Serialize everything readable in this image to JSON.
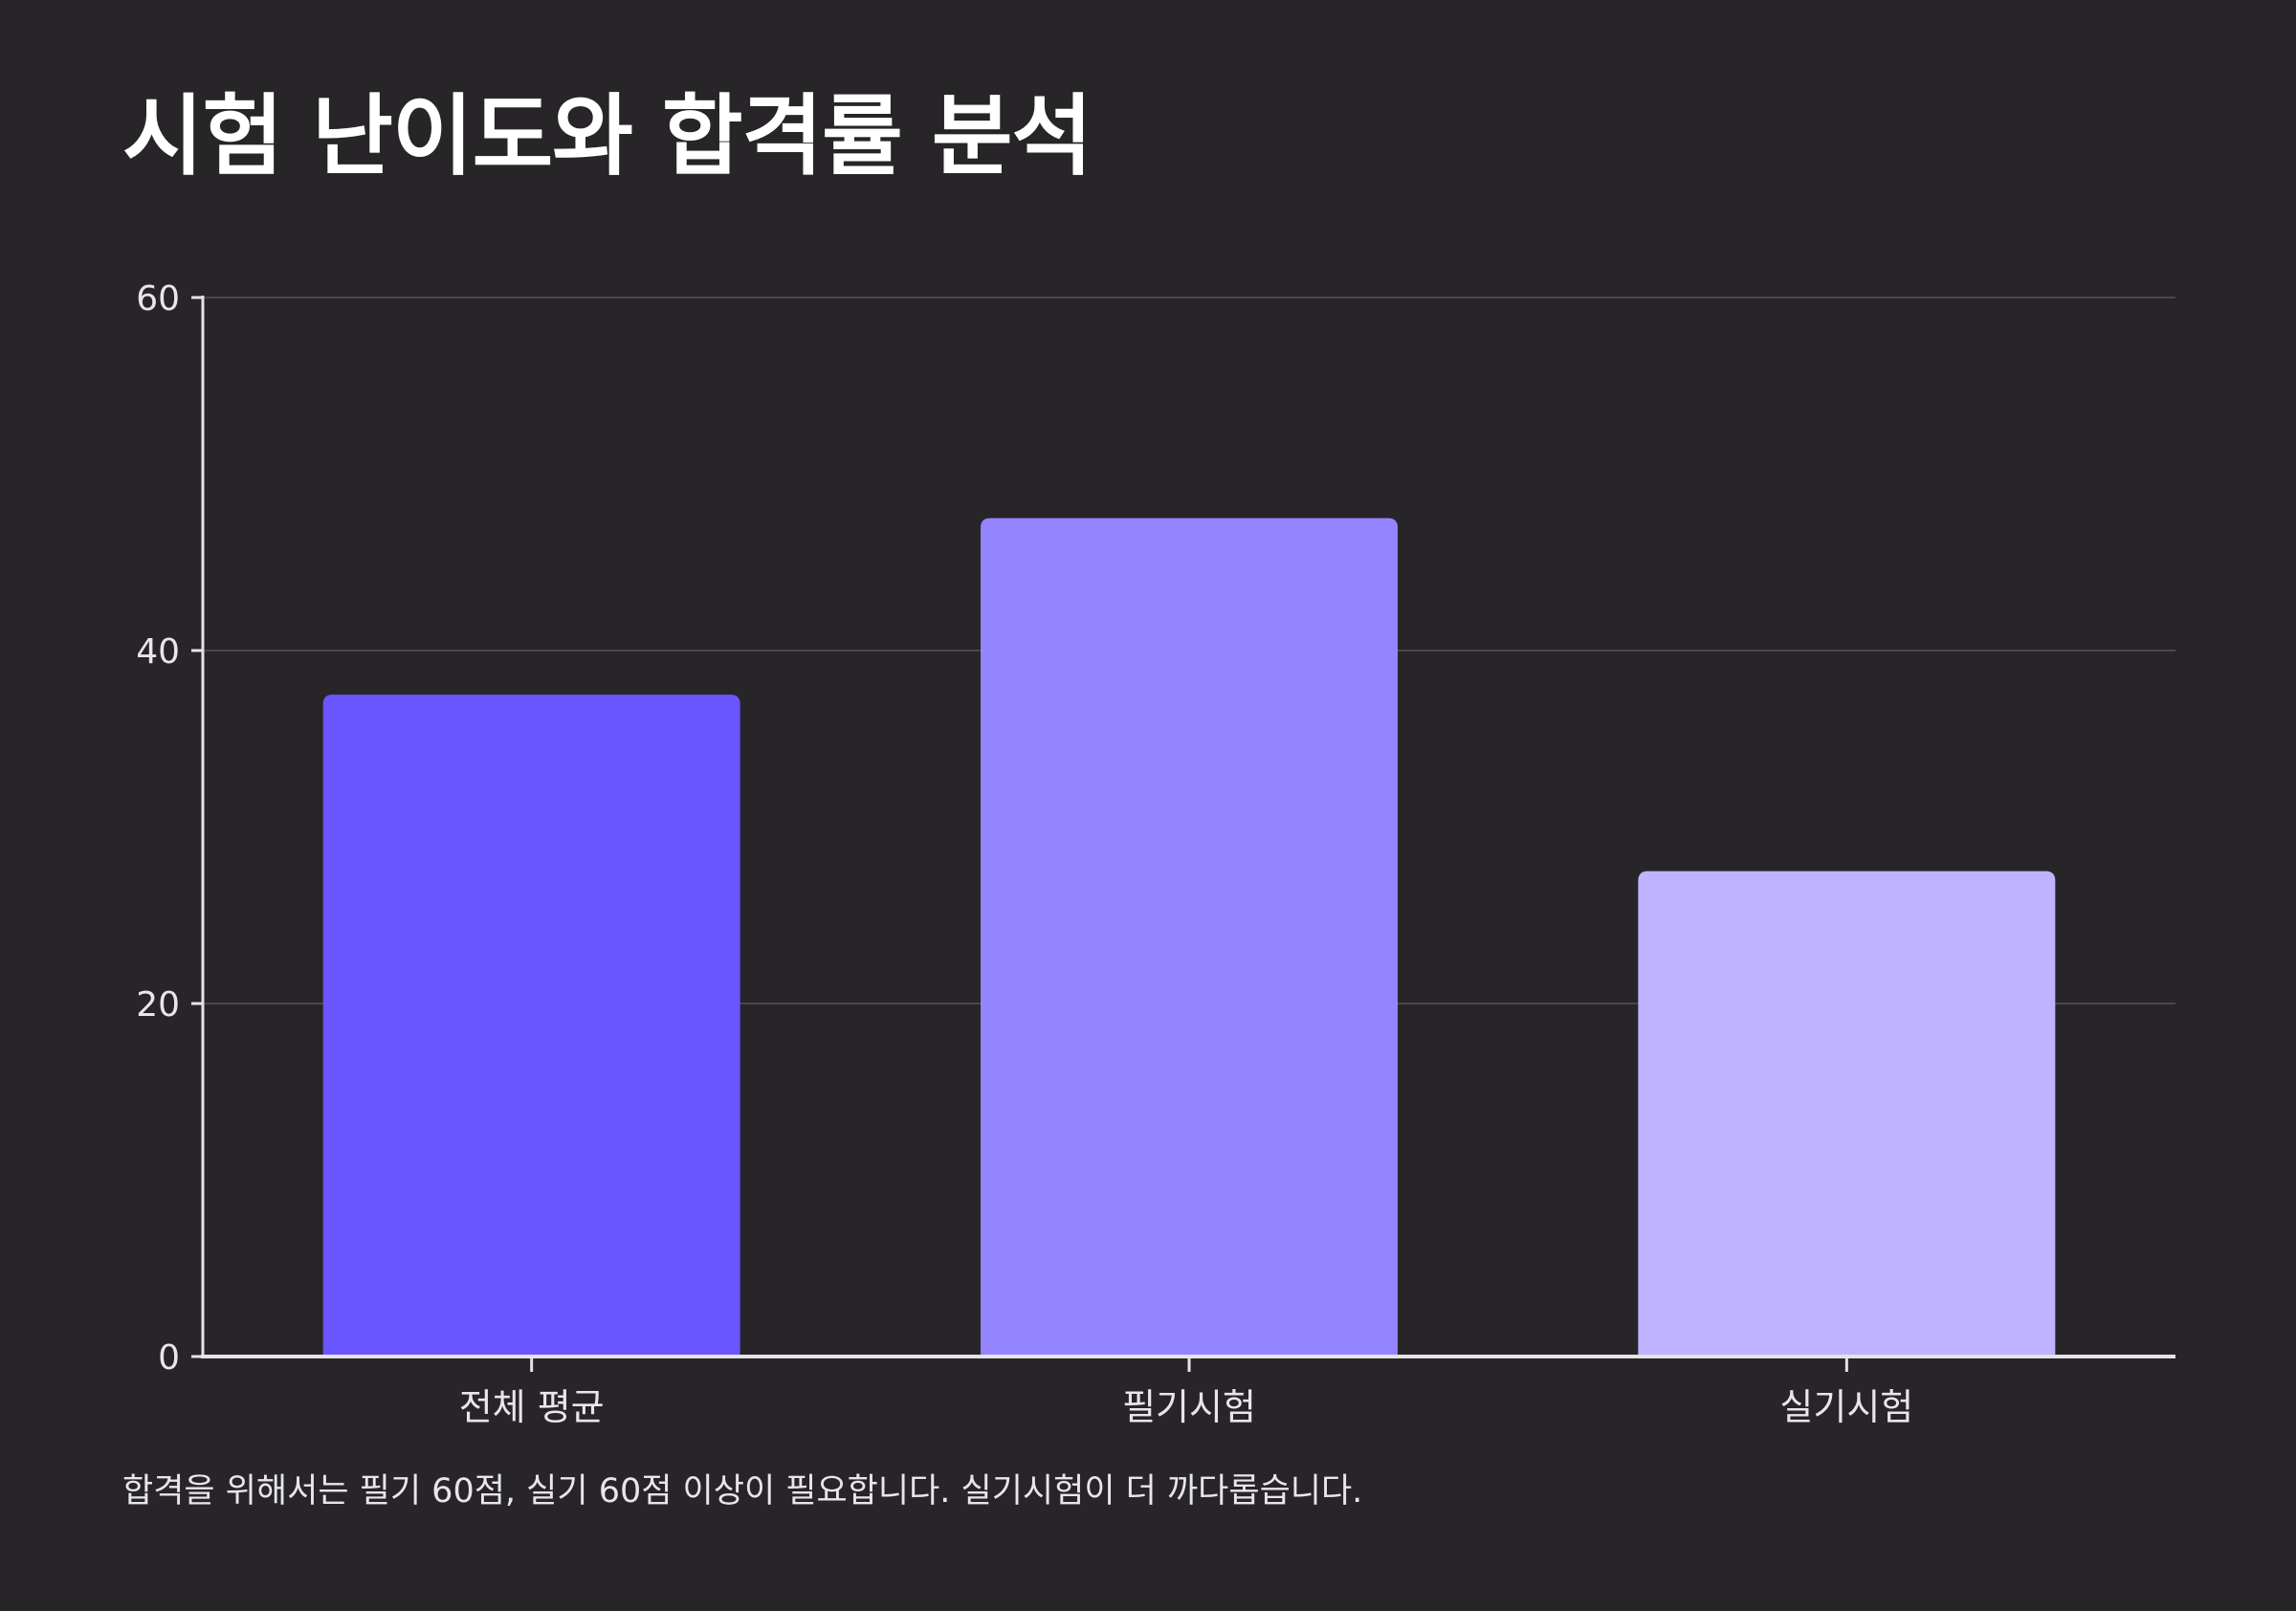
{
  "title": "시험 난이도와 합격률 분석",
  "caption": "합격을 위해서는 필기 60점, 실기 60점 이상이 필요합니다. 실기시험이 더 까다롭습니다.",
  "colors": {
    "background": "#272527",
    "axis": "#e6e2e6",
    "grid": "#4a474b",
    "tick_text": "#e8e6ea",
    "bar_colors": [
      "#6a56ff",
      "#9484ff",
      "#bfb3ff"
    ]
  },
  "chart_data": {
    "type": "bar",
    "title": "시험 난이도와 합격률 분석",
    "xlabel": "",
    "ylabel": "",
    "categories": [
      "전체 평균",
      "필기시험",
      "실기시험"
    ],
    "values": [
      37.5,
      47.5,
      27.5
    ],
    "ylim": [
      0,
      60
    ],
    "yticks": [
      "0",
      "20",
      "40",
      "60"
    ],
    "grid": true,
    "legend": "none"
  }
}
